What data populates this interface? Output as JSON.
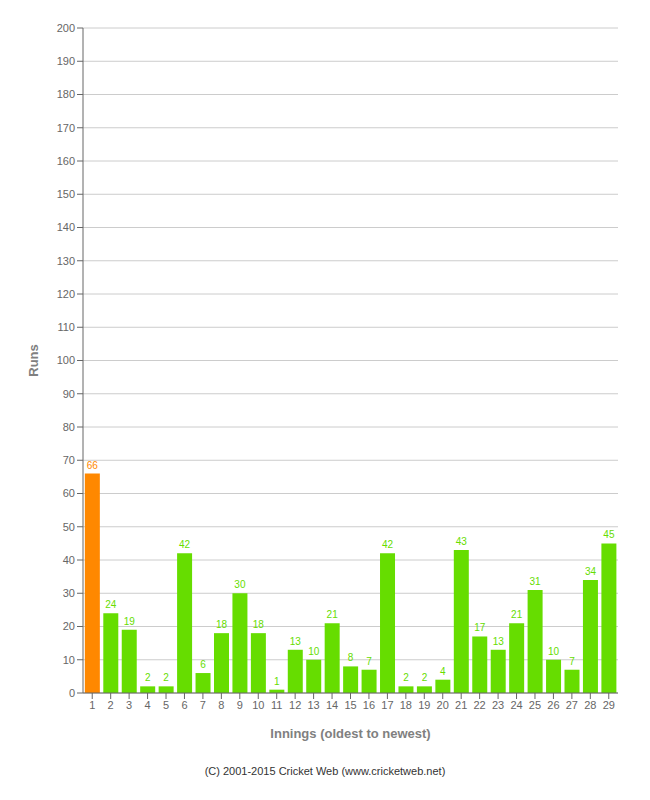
{
  "chart_data": {
    "type": "bar",
    "categories": [
      "1",
      "2",
      "3",
      "4",
      "5",
      "6",
      "7",
      "8",
      "9",
      "10",
      "11",
      "12",
      "13",
      "14",
      "15",
      "16",
      "17",
      "18",
      "19",
      "20",
      "21",
      "22",
      "23",
      "24",
      "25",
      "26",
      "27",
      "28",
      "29"
    ],
    "values": [
      66,
      24,
      19,
      2,
      2,
      42,
      6,
      18,
      30,
      18,
      1,
      13,
      10,
      21,
      8,
      7,
      42,
      2,
      2,
      4,
      43,
      17,
      13,
      21,
      31,
      10,
      7,
      34,
      45
    ],
    "colors": [
      "#ff8800",
      "#66dd00",
      "#66dd00",
      "#66dd00",
      "#66dd00",
      "#66dd00",
      "#66dd00",
      "#66dd00",
      "#66dd00",
      "#66dd00",
      "#66dd00",
      "#66dd00",
      "#66dd00",
      "#66dd00",
      "#66dd00",
      "#66dd00",
      "#66dd00",
      "#66dd00",
      "#66dd00",
      "#66dd00",
      "#66dd00",
      "#66dd00",
      "#66dd00",
      "#66dd00",
      "#66dd00",
      "#66dd00",
      "#66dd00",
      "#66dd00",
      "#66dd00"
    ],
    "xlabel": "Innings (oldest to newest)",
    "ylabel": "Runs",
    "ylim": [
      0,
      200
    ],
    "yticks": [
      0,
      10,
      20,
      30,
      40,
      50,
      60,
      70,
      80,
      90,
      100,
      110,
      120,
      130,
      140,
      150,
      160,
      170,
      180,
      190,
      200
    ],
    "grid": true,
    "data_labels": true,
    "annotations": [
      "(C) 2001-2015 Cricket Web (www.cricketweb.net)"
    ]
  }
}
